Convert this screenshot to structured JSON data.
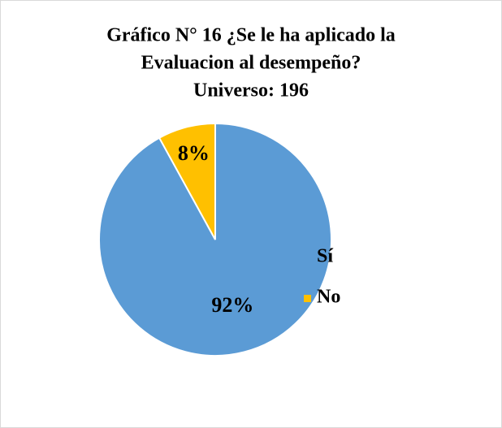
{
  "chart_data": {
    "type": "pie",
    "title": [
      "Gráfico N° 16 ¿Se le ha aplicado la",
      "Evaluacion al desempeño?",
      "Universo: 196"
    ],
    "categories": [
      "Sí",
      "No"
    ],
    "values": [
      92,
      8
    ],
    "value_labels": [
      "92%",
      "8%"
    ],
    "colors": [
      "#5b9bd5",
      "#ffc000"
    ],
    "legend": "right"
  }
}
